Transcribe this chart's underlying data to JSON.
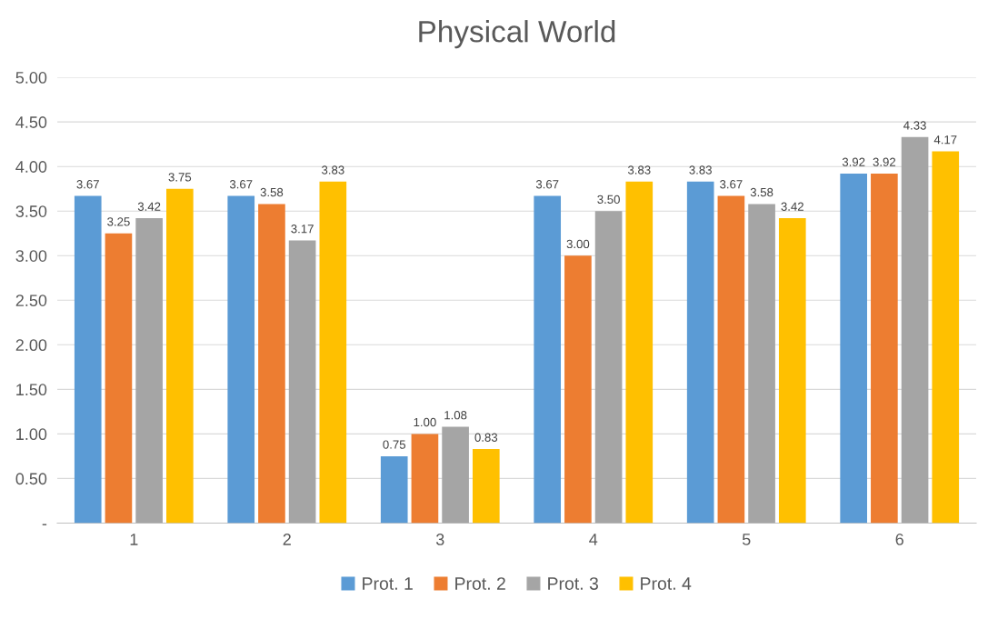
{
  "chart_data": {
    "type": "bar",
    "title": "Physical World",
    "categories": [
      "1",
      "2",
      "3",
      "4",
      "5",
      "6"
    ],
    "series": [
      {
        "name": "Prot. 1",
        "color": "#5b9bd5",
        "values": [
          3.67,
          3.67,
          0.75,
          3.67,
          3.83,
          3.92
        ],
        "value_labels": [
          "3.67",
          "3.67",
          "0.75",
          "3.67",
          "3.83",
          "3.92"
        ]
      },
      {
        "name": "Prot. 2",
        "color": "#ed7d31",
        "values": [
          3.25,
          3.58,
          1.0,
          3.0,
          3.67,
          3.92
        ],
        "value_labels": [
          "3.25",
          "3.58",
          "1.00",
          "3.00",
          "3.67",
          "3.92"
        ]
      },
      {
        "name": "Prot. 3",
        "color": "#a5a5a5",
        "values": [
          3.42,
          3.17,
          1.08,
          3.5,
          3.58,
          4.33
        ],
        "value_labels": [
          "3.42",
          "3.17",
          "1.08",
          "3.50",
          "3.58",
          "4.33"
        ]
      },
      {
        "name": "Prot. 4",
        "color": "#ffc000",
        "values": [
          3.75,
          3.83,
          0.83,
          3.83,
          3.42,
          4.17
        ],
        "value_labels": [
          "3.75",
          "3.83",
          "0.83",
          "3.83",
          "3.42",
          "4.17"
        ]
      }
    ],
    "ylim": [
      0,
      5
    ],
    "yticks": [
      {
        "value": 0,
        "label": "-"
      },
      {
        "value": 0.5,
        "label": "0.50"
      },
      {
        "value": 1,
        "label": "1.00"
      },
      {
        "value": 1.5,
        "label": "1.50"
      },
      {
        "value": 2,
        "label": "2.00"
      },
      {
        "value": 2.5,
        "label": "2.50"
      },
      {
        "value": 3,
        "label": "3.00"
      },
      {
        "value": 3.5,
        "label": "3.50"
      },
      {
        "value": 4,
        "label": "4.00"
      },
      {
        "value": 4.5,
        "label": "4.50"
      },
      {
        "value": 5,
        "label": "5.00"
      }
    ],
    "grid": "y",
    "legend": "bottom"
  }
}
